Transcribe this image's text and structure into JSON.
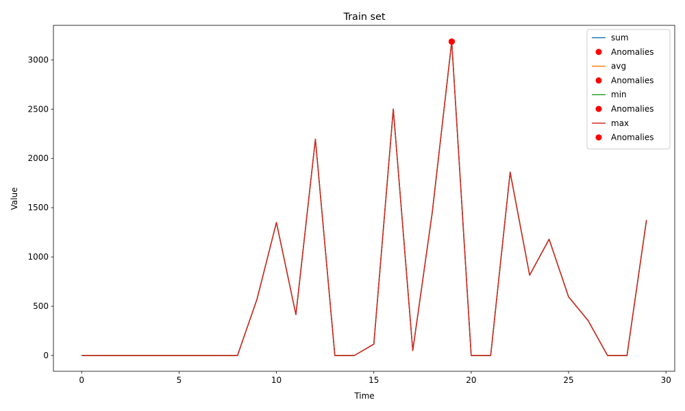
{
  "chart_data": {
    "type": "line",
    "title": "Train set",
    "xlabel": "Time",
    "ylabel": "Value",
    "xlim": [
      -1.45,
      30.45
    ],
    "ylim": [
      -160,
      3350
    ],
    "xticks": [
      0,
      5,
      10,
      15,
      20,
      25,
      30
    ],
    "yticks": [
      0,
      500,
      1000,
      1500,
      2000,
      2500,
      3000
    ],
    "x": [
      0,
      1,
      2,
      3,
      4,
      5,
      6,
      7,
      8,
      9,
      10,
      11,
      12,
      13,
      14,
      15,
      16,
      17,
      18,
      19,
      20,
      21,
      22,
      23,
      24,
      25,
      26,
      27,
      28,
      29
    ],
    "series": [
      {
        "name": "sum",
        "color": "#1f77b4",
        "values": [
          0,
          0,
          0,
          0,
          0,
          0,
          0,
          0,
          0,
          570,
          1350,
          415,
          2195,
          0,
          0,
          115,
          2500,
          50,
          1450,
          3185,
          0,
          0,
          1860,
          815,
          1180,
          595,
          355,
          0,
          0,
          1375
        ]
      },
      {
        "name": "avg",
        "color": "#ff7f0e",
        "values": [
          0,
          0,
          0,
          0,
          0,
          0,
          0,
          0,
          0,
          570,
          1350,
          415,
          2195,
          0,
          0,
          115,
          2500,
          50,
          1450,
          3185,
          0,
          0,
          1860,
          815,
          1180,
          595,
          355,
          0,
          0,
          1375
        ]
      },
      {
        "name": "min",
        "color": "#2ca02c",
        "values": [
          0,
          0,
          0,
          0,
          0,
          0,
          0,
          0,
          0,
          570,
          1350,
          415,
          2195,
          0,
          0,
          115,
          2500,
          50,
          1450,
          3185,
          0,
          0,
          1860,
          815,
          1180,
          595,
          355,
          0,
          0,
          1375
        ]
      },
      {
        "name": "max",
        "color": "#d62728",
        "values": [
          0,
          0,
          0,
          0,
          0,
          0,
          0,
          0,
          0,
          570,
          1350,
          415,
          2195,
          0,
          0,
          115,
          2500,
          50,
          1450,
          3185,
          0,
          0,
          1860,
          815,
          1180,
          595,
          355,
          0,
          0,
          1375
        ]
      }
    ],
    "anomalies": [
      {
        "series": "sum",
        "name": "Anomalies",
        "color": "#ff0000",
        "points": [
          {
            "x": 19,
            "y": 3185
          }
        ]
      },
      {
        "series": "avg",
        "name": "Anomalies",
        "color": "#ff0000",
        "points": [
          {
            "x": 19,
            "y": 3185
          }
        ]
      },
      {
        "series": "min",
        "name": "Anomalies",
        "color": "#ff0000",
        "points": [
          {
            "x": 19,
            "y": 3185
          }
        ]
      },
      {
        "series": "max",
        "name": "Anomalies",
        "color": "#ff0000",
        "points": [
          {
            "x": 19,
            "y": 3185
          }
        ]
      }
    ],
    "legend": {
      "placement": "top-right",
      "entries": [
        {
          "label": "sum",
          "kind": "line",
          "color": "#1f77b4"
        },
        {
          "label": "Anomalies",
          "kind": "marker",
          "color": "#ff0000"
        },
        {
          "label": "avg",
          "kind": "line",
          "color": "#ff7f0e"
        },
        {
          "label": "Anomalies",
          "kind": "marker",
          "color": "#ff0000"
        },
        {
          "label": "min",
          "kind": "line",
          "color": "#2ca02c"
        },
        {
          "label": "Anomalies",
          "kind": "marker",
          "color": "#ff0000"
        },
        {
          "label": "max",
          "kind": "line",
          "color": "#d62728"
        },
        {
          "label": "Anomalies",
          "kind": "marker",
          "color": "#ff0000"
        }
      ]
    },
    "grid": false
  }
}
